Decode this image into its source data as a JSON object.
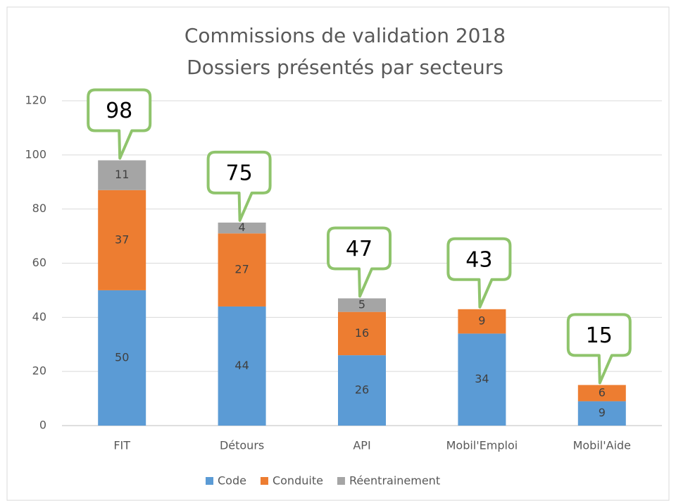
{
  "chart_data": {
    "type": "stacked_bar",
    "title": "Commissions de validation 2018",
    "subtitle": "Dossiers présentés par secteurs",
    "categories": [
      "FIT",
      "Détours",
      "API",
      "Mobil'Emploi",
      "Mobil'Aide"
    ],
    "series": [
      {
        "name": "Code",
        "color": "#5b9bd5",
        "values": [
          50,
          44,
          26,
          34,
          9
        ]
      },
      {
        "name": "Conduite",
        "color": "#ed7d31",
        "values": [
          37,
          27,
          16,
          9,
          6
        ]
      },
      {
        "name": "Réentrainement",
        "color": "#a5a5a5",
        "values": [
          11,
          4,
          5,
          0,
          0
        ]
      }
    ],
    "totals": [
      98,
      75,
      47,
      43,
      15
    ],
    "ylim": [
      0,
      120
    ],
    "yticks": [
      0,
      20,
      40,
      60,
      80,
      100,
      120
    ],
    "grid": true,
    "legend": "bottom",
    "callout_color": "#8fc46c"
  }
}
